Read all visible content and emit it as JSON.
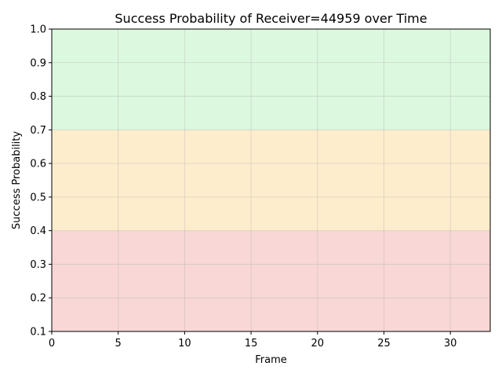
{
  "chart_data": {
    "type": "line",
    "title": "Success Probability of Receiver=44959 over Time",
    "xlabel": "Frame",
    "ylabel": "Success Probability",
    "xlim": [
      0,
      33
    ],
    "ylim": [
      0.1,
      1.0
    ],
    "xticks": [
      0,
      5,
      10,
      15,
      20,
      25,
      30
    ],
    "xtick_labels": [
      "0",
      "5",
      "10",
      "15",
      "20",
      "25",
      "30"
    ],
    "yticks": [
      0.1,
      0.2,
      0.3,
      0.4,
      0.5,
      0.6,
      0.7,
      0.8,
      0.9,
      1.0
    ],
    "ytick_labels": [
      "0.1",
      "0.2",
      "0.3",
      "0.4",
      "0.5",
      "0.6",
      "0.7",
      "0.8",
      "0.9",
      "1.0"
    ],
    "grid": true,
    "series": [],
    "bands": [
      {
        "y0": 0.1,
        "y1": 0.4,
        "color": "#f8d7d6"
      },
      {
        "y0": 0.4,
        "y1": 0.7,
        "color": "#feedcd"
      },
      {
        "y0": 0.7,
        "y1": 1.0,
        "color": "#dcf8df"
      }
    ]
  }
}
